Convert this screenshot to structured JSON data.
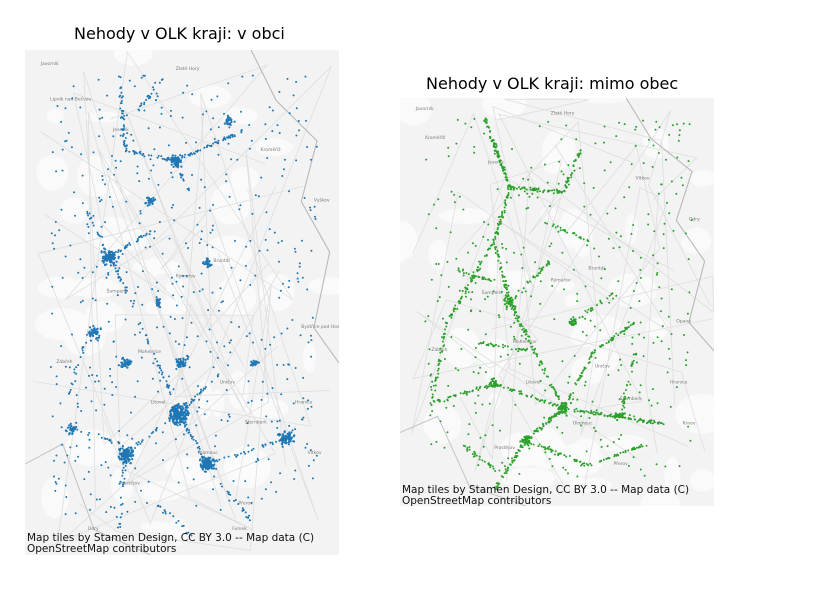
{
  "maps": [
    {
      "title": "Nehody v OLK kraji: v obci",
      "attribution_line1": "Map tiles by Stamen Design, CC BY 3.0 -- Map data (C)",
      "attribution_line2": "OpenStreetMap contributors",
      "point_color": "#1f77b4",
      "place_labels": [
        "Javorník",
        "Zlaté Hory",
        "Jeseník",
        "Bruntál",
        "Rýmařov",
        "Šumperk",
        "Zábřeh",
        "Mohelnice",
        "Litovel",
        "Uničov",
        "Šternberk",
        "Olomouc",
        "Prostějov",
        "Přerov",
        "Hranice",
        "Lipník nad Bečvou",
        "Kroměříž",
        "Vyškov",
        "Bystřice pod Hostýnem",
        "Vítkov",
        "Odry",
        "Fulnek"
      ]
    },
    {
      "title": "Nehody v OLK kraji: mimo obec",
      "attribution_line1": "Map tiles by Stamen Design, CC BY 3.0 -- Map data (C)",
      "attribution_line2": "OpenStreetMap contributors",
      "point_color": "#2ca02c",
      "place_labels": [
        "Javorník",
        "Zlaté Hory",
        "Jeseník",
        "Bruntál",
        "Rýmařov",
        "Šumperk",
        "Zábřeh",
        "Mohelnice",
        "Litovel",
        "Uničov",
        "Šternberk",
        "Olomouc",
        "Prostějov",
        "Přerov",
        "Hranice",
        "Kroměříž",
        "Vítkov",
        "Odry",
        "Opava",
        "Krnov"
      ]
    }
  ],
  "colors": {
    "map_background": "#efefef",
    "map_land": "#f7f7f7",
    "border": "#b9b9b9",
    "road": "#d9d9d9"
  }
}
